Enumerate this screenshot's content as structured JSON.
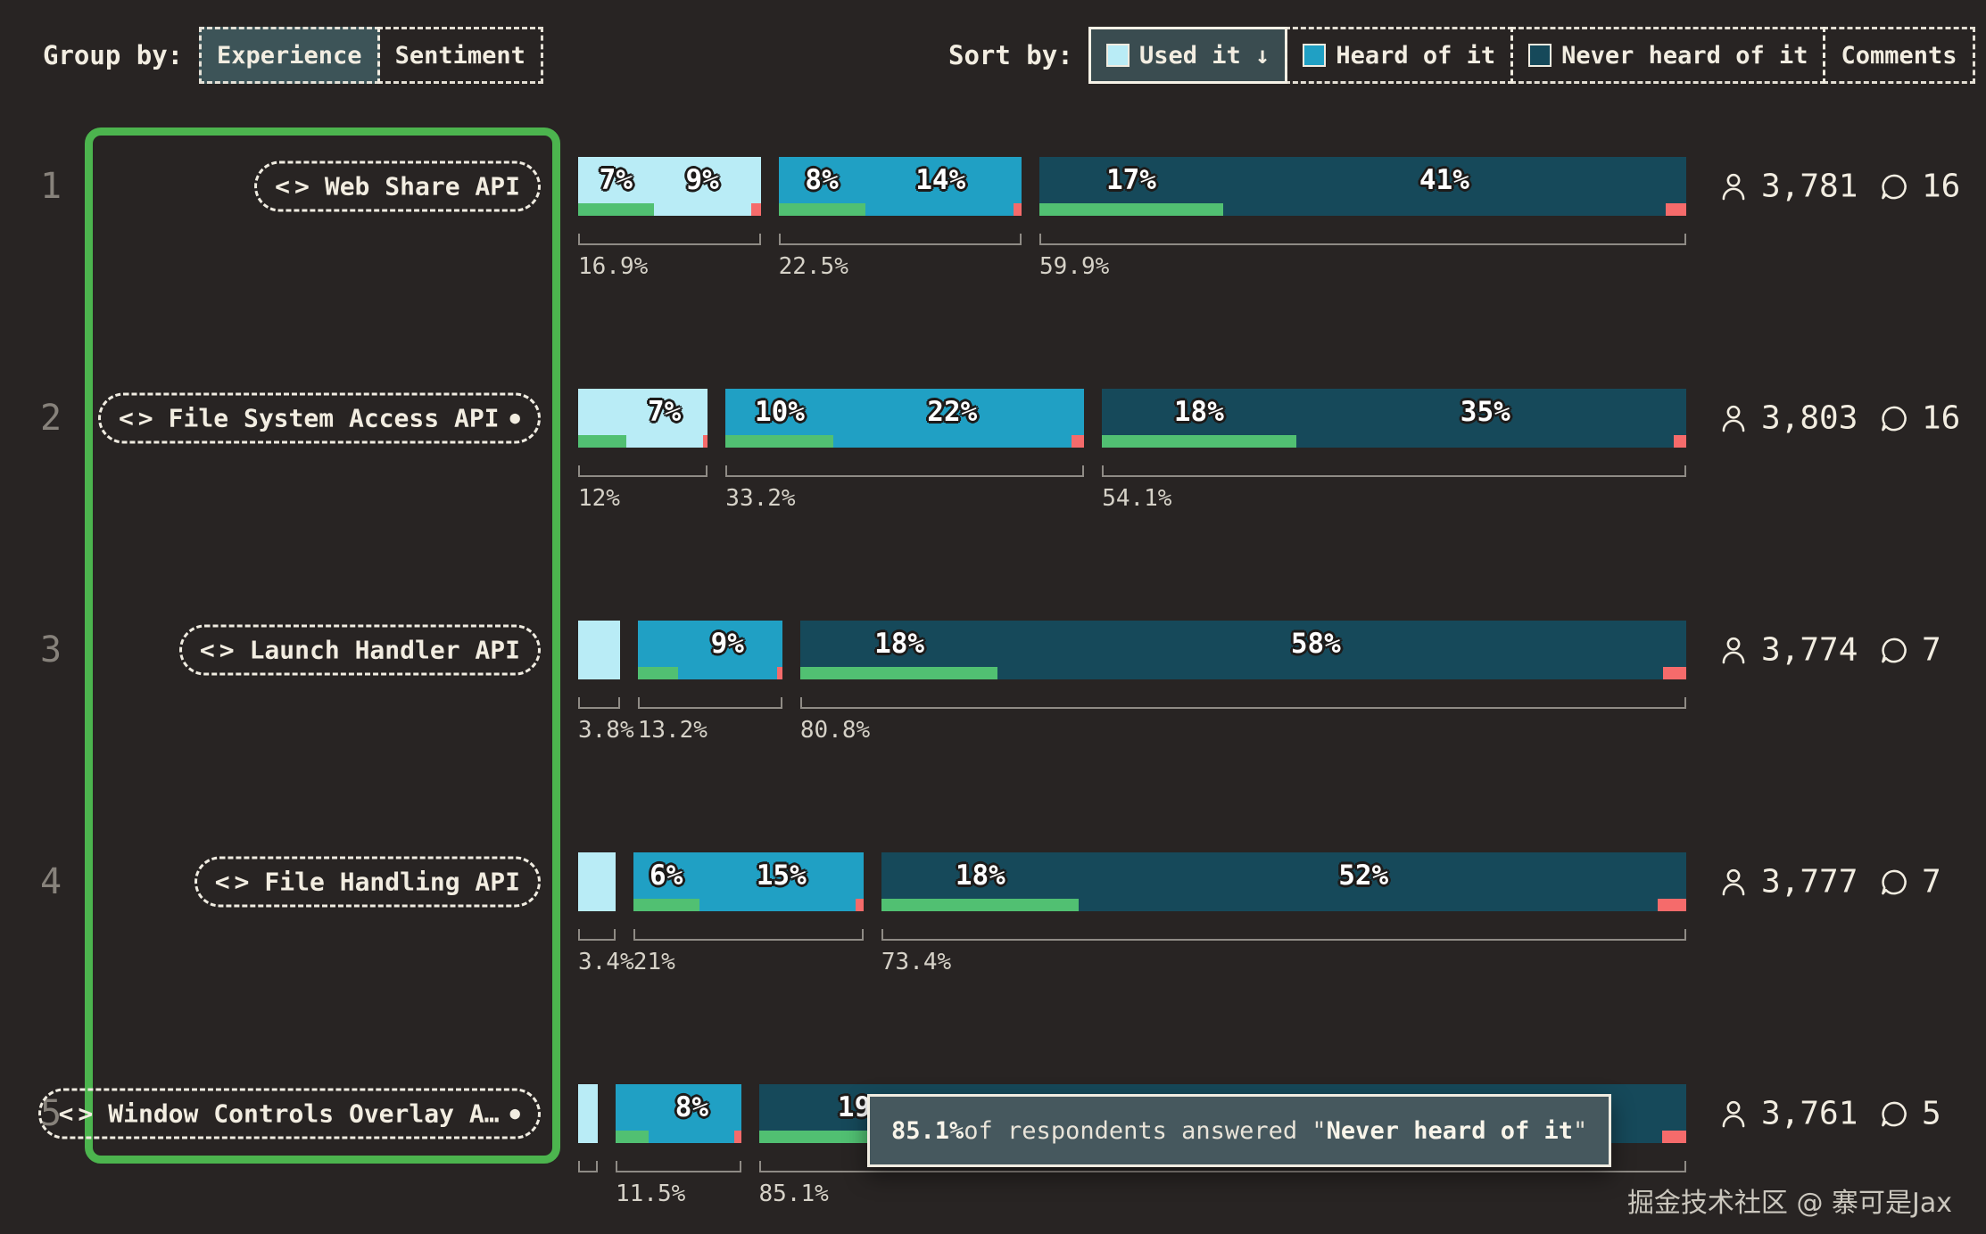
{
  "colors": {
    "bg": "#282423",
    "cream": "#f2ede1",
    "used": "#b9ecf6",
    "heard": "#20a0c4",
    "never": "#16495a",
    "green": "#51c072",
    "red": "#f56b6b",
    "frame": "#4cb44e",
    "tooltipBg": "#46585e"
  },
  "controls": {
    "group_by": {
      "label": "Group by:",
      "options": [
        {
          "label": "Experience",
          "selected": true
        },
        {
          "label": "Sentiment",
          "selected": false
        }
      ]
    },
    "sort_by": {
      "label": "Sort by:",
      "options": [
        {
          "label": "Used it ↓",
          "swatch": "#b9ecf6",
          "selected": true
        },
        {
          "label": "Heard of it",
          "swatch": "#20a0c4",
          "selected": false
        },
        {
          "label": "Never heard of it",
          "swatch": "#16495a",
          "selected": false
        },
        {
          "label": "Comments",
          "swatch": null,
          "selected": false
        }
      ]
    }
  },
  "rows": [
    {
      "rank": "1",
      "name": "Web Share API",
      "dot": false,
      "users": "3,781",
      "comments": "16",
      "groups": [
        {
          "key": "used",
          "total": 16.9,
          "total_label": "16.9%",
          "green_pct": 41.4,
          "red_pct": 5.0,
          "labels": [
            {
              "text": "7%",
              "x": 20.7
            },
            {
              "text": "9%",
              "x": 68.0
            }
          ]
        },
        {
          "key": "heard",
          "total": 22.5,
          "total_label": "22.5%",
          "green_pct": 35.6,
          "red_pct": 3.2,
          "labels": [
            {
              "text": "8%",
              "x": 17.8
            },
            {
              "text": "14%",
              "x": 66.7
            }
          ]
        },
        {
          "key": "never",
          "total": 59.9,
          "total_label": "59.9%",
          "green_pct": 28.4,
          "red_pct": 3.2,
          "labels": [
            {
              "text": "17%",
              "x": 14.2
            },
            {
              "text": "41%",
              "x": 62.6
            }
          ]
        }
      ]
    },
    {
      "rank": "2",
      "name": "File System Access API",
      "dot": true,
      "users": "3,803",
      "comments": "16",
      "groups": [
        {
          "key": "used",
          "total": 12.0,
          "total_label": "12%",
          "green_pct": 37.5,
          "red_pct": 4.0,
          "labels": [
            {
              "text": "7%",
              "x": 66.5
            }
          ]
        },
        {
          "key": "heard",
          "total": 33.2,
          "total_label": "33.2%",
          "green_pct": 30.1,
          "red_pct": 3.6,
          "labels": [
            {
              "text": "10%",
              "x": 15.1
            },
            {
              "text": "22%",
              "x": 63.2
            }
          ]
        },
        {
          "key": "never",
          "total": 54.1,
          "total_label": "54.1%",
          "green_pct": 33.3,
          "red_pct": 2.2,
          "labels": [
            {
              "text": "18%",
              "x": 16.6
            },
            {
              "text": "35%",
              "x": 65.6
            }
          ]
        }
      ]
    },
    {
      "rank": "3",
      "name": "Launch Handler API",
      "dot": false,
      "users": "3,774",
      "comments": "7",
      "groups": [
        {
          "key": "used",
          "total": 3.8,
          "total_label": "3.8%",
          "green_pct": 0,
          "red_pct": 0,
          "labels": []
        },
        {
          "key": "heard",
          "total": 13.2,
          "total_label": "13.2%",
          "green_pct": 28.0,
          "red_pct": 3.8,
          "labels": [
            {
              "text": "9%",
              "x": 62.0
            }
          ]
        },
        {
          "key": "never",
          "total": 80.8,
          "total_label": "80.8%",
          "green_pct": 22.3,
          "red_pct": 2.6,
          "labels": [
            {
              "text": "18%",
              "x": 11.2
            },
            {
              "text": "58%",
              "x": 58.2
            }
          ]
        }
      ]
    },
    {
      "rank": "4",
      "name": "File Handling API",
      "dot": false,
      "users": "3,777",
      "comments": "7",
      "groups": [
        {
          "key": "used",
          "total": 3.4,
          "total_label": "3.4%",
          "green_pct": 0,
          "red_pct": 0,
          "labels": []
        },
        {
          "key": "heard",
          "total": 21.0,
          "total_label": "21%",
          "green_pct": 28.6,
          "red_pct": 3.5,
          "labels": [
            {
              "text": "6%",
              "x": 14.3
            },
            {
              "text": "15%",
              "x": 64.3
            }
          ]
        },
        {
          "key": "never",
          "total": 73.4,
          "total_label": "73.4%",
          "green_pct": 24.5,
          "red_pct": 3.6,
          "labels": [
            {
              "text": "18%",
              "x": 12.3
            },
            {
              "text": "52%",
              "x": 59.9
            }
          ]
        }
      ]
    },
    {
      "rank": "5",
      "name": "Window Controls Overlay A…",
      "dot": true,
      "users": "3,761",
      "comments": "5",
      "groups": [
        {
          "key": "used",
          "total": 1.8,
          "total_label": "",
          "green_pct": 0,
          "red_pct": 0,
          "labels": []
        },
        {
          "key": "heard",
          "total": 11.5,
          "total_label": "11.5%",
          "green_pct": 26.0,
          "red_pct": 5.0,
          "labels": [
            {
              "text": "8%",
              "x": 60.8
            }
          ]
        },
        {
          "key": "never",
          "total": 85.1,
          "total_label": "85.1%",
          "green_pct": 22.3,
          "red_pct": 2.6,
          "labels": [
            {
              "text": "19%",
              "x": 11.2
            }
          ]
        }
      ]
    }
  ],
  "tooltip": {
    "value": "85.1%",
    "mid": " of respondents answered \"",
    "highlight": "Never heard of it",
    "end": "\""
  },
  "footer": {
    "text": "掘金技术社区 @ 寨可是Jax"
  },
  "chart_data": {
    "type": "bar",
    "subtype": "horizontal-stacked-grouped",
    "title": "",
    "categories": [
      "Web Share API",
      "File System Access API",
      "Launch Handler API",
      "File Handling API",
      "Window Controls Overlay API"
    ],
    "series": [
      {
        "name": "Used it",
        "values": [
          16.9,
          12.0,
          3.8,
          3.4,
          1.8
        ]
      },
      {
        "name": "Heard of it",
        "values": [
          22.5,
          33.2,
          13.2,
          21.0,
          11.5
        ]
      },
      {
        "name": "Never heard of it",
        "values": [
          59.9,
          54.1,
          80.8,
          73.4,
          85.1
        ]
      }
    ],
    "segment_labels": [
      {
        "used": [
          7,
          9
        ],
        "heard": [
          8,
          14
        ],
        "never": [
          17,
          41
        ]
      },
      {
        "used": [
          7
        ],
        "heard": [
          10,
          22
        ],
        "never": [
          18,
          35
        ]
      },
      {
        "used": [],
        "heard": [
          9
        ],
        "never": [
          18,
          58
        ]
      },
      {
        "used": [],
        "heard": [
          6,
          15
        ],
        "never": [
          18,
          52
        ]
      },
      {
        "used": [],
        "heard": [
          8
        ],
        "never": [
          19
        ]
      }
    ],
    "respondents": [
      3781,
      3803,
      3774,
      3777,
      3761
    ],
    "comments": [
      16,
      16,
      7,
      7,
      5
    ],
    "legend": [
      "Used it",
      "Heard of it",
      "Never heard of it"
    ],
    "legend_position": "top-right",
    "sort": "Used it descending",
    "group_by": "Experience",
    "xlim": [
      0,
      100
    ],
    "grid": false
  }
}
